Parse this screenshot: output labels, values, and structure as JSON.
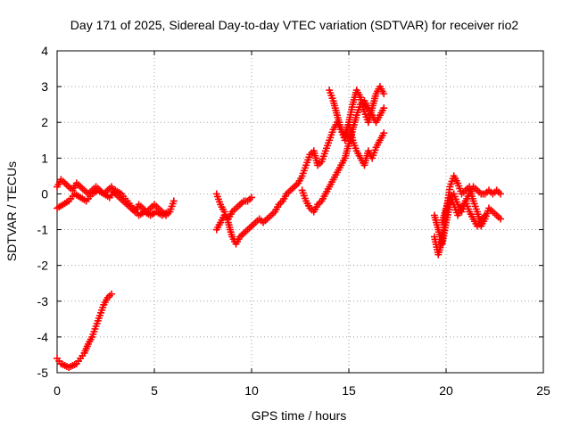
{
  "chart_data": {
    "type": "scatter",
    "title": "Day 171 of 2025, Sidereal Day-to-day VTEC variation (SDTVAR) for receiver rio2",
    "xlabel": "GPS time / hours",
    "ylabel": "SDTVAR / TECUs",
    "xlim": [
      0,
      25
    ],
    "ylim": [
      -5,
      4
    ],
    "xticks": [
      "0",
      "5",
      "10",
      "15",
      "20",
      "25"
    ],
    "yticks": [
      "-5",
      "-4",
      "-3",
      "-2",
      "-1",
      "0",
      "1",
      "2",
      "3",
      "4"
    ],
    "grid": true,
    "marker": "plus",
    "color": "#ff0000",
    "series": [
      {
        "name": "segment-1",
        "x": [
          0.0,
          0.2,
          0.4,
          0.6,
          0.8,
          1.0,
          1.2,
          1.4,
          1.6,
          1.8,
          2.0,
          2.2,
          2.4,
          2.6,
          2.8,
          3.0,
          3.2,
          3.4,
          3.6,
          3.8,
          4.0,
          4.2,
          4.4,
          4.6,
          4.8,
          5.0,
          5.2,
          5.4,
          5.6,
          5.8,
          6.0
        ],
        "y": [
          0.2,
          0.4,
          0.3,
          0.2,
          0.1,
          0.3,
          0.2,
          0.1,
          0.0,
          0.1,
          0.2,
          0.1,
          0.0,
          0.1,
          0.2,
          0.0,
          -0.1,
          -0.2,
          -0.3,
          -0.4,
          -0.5,
          -0.3,
          -0.4,
          -0.5,
          -0.4,
          -0.3,
          -0.4,
          -0.5,
          -0.6,
          -0.5,
          -0.2
        ]
      },
      {
        "name": "segment-2",
        "x": [
          0.0,
          0.3,
          0.6,
          0.9,
          1.2,
          1.5,
          1.8,
          2.1,
          2.4,
          2.7,
          3.0,
          3.3,
          3.6,
          3.9,
          4.2,
          4.5,
          4.8,
          5.1,
          5.4,
          5.7
        ],
        "y": [
          -0.4,
          -0.3,
          -0.2,
          0.0,
          -0.1,
          -0.2,
          0.0,
          0.1,
          0.0,
          -0.1,
          0.1,
          0.0,
          -0.2,
          -0.4,
          -0.6,
          -0.5,
          -0.6,
          -0.5,
          -0.6,
          -0.5
        ]
      },
      {
        "name": "segment-3",
        "x": [
          0.0,
          0.2,
          0.4,
          0.6,
          0.8,
          1.0,
          1.2,
          1.4,
          1.6,
          1.8,
          2.0,
          2.2,
          2.4,
          2.6,
          2.8
        ],
        "y": [
          -4.6,
          -4.75,
          -4.8,
          -4.85,
          -4.8,
          -4.75,
          -4.6,
          -4.45,
          -4.2,
          -4.0,
          -3.7,
          -3.4,
          -3.1,
          -2.9,
          -2.8
        ]
      },
      {
        "name": "segment-4",
        "x": [
          8.2,
          8.4,
          8.6,
          8.8,
          9.0,
          9.2,
          9.4,
          9.6,
          9.8,
          10.0
        ],
        "y": [
          -1.0,
          -0.8,
          -0.6,
          -0.7,
          -0.5,
          -0.4,
          -0.3,
          -0.2,
          -0.2,
          -0.1
        ]
      },
      {
        "name": "segment-5",
        "x": [
          8.2,
          8.4,
          8.6,
          8.8,
          9.0,
          9.2,
          9.4,
          9.6,
          9.8,
          10.0,
          10.2,
          10.4,
          10.6,
          10.8,
          11.0,
          11.2,
          11.4,
          11.6,
          11.8,
          12.0,
          12.2,
          12.4,
          12.6,
          12.8,
          13.0,
          13.2,
          13.4,
          13.6,
          13.8,
          14.0,
          14.2,
          14.4,
          14.6,
          14.8,
          15.0,
          15.2,
          15.4,
          15.6,
          15.8,
          16.0,
          16.2,
          16.4,
          16.6,
          16.8
        ],
        "y": [
          0.0,
          -0.3,
          -0.5,
          -0.8,
          -1.2,
          -1.4,
          -1.2,
          -1.1,
          -1.0,
          -0.9,
          -0.8,
          -0.7,
          -0.8,
          -0.7,
          -0.6,
          -0.5,
          -0.3,
          -0.2,
          0.0,
          0.1,
          0.2,
          0.3,
          0.5,
          0.8,
          1.1,
          1.2,
          0.8,
          0.9,
          1.2,
          1.5,
          1.8,
          2.0,
          1.8,
          1.6,
          2.0,
          1.5,
          1.2,
          1.0,
          0.8,
          1.2,
          1.0,
          1.3,
          1.5,
          1.7
        ]
      },
      {
        "name": "segment-6",
        "x": [
          12.6,
          12.8,
          13.0,
          13.2,
          13.4,
          13.6,
          13.8,
          14.0,
          14.2,
          14.4,
          14.6,
          14.8,
          15.0,
          15.2,
          15.4,
          15.6,
          15.8,
          16.0,
          16.2,
          16.4,
          16.6,
          16.8
        ],
        "y": [
          0.1,
          -0.2,
          -0.4,
          -0.5,
          -0.3,
          -0.2,
          0.0,
          0.2,
          0.4,
          0.6,
          0.8,
          1.0,
          1.4,
          1.8,
          2.2,
          2.5,
          2.6,
          2.4,
          2.2,
          2.0,
          2.2,
          2.4
        ]
      },
      {
        "name": "segment-7",
        "x": [
          14.0,
          14.2,
          14.4,
          14.6,
          14.8,
          15.0,
          15.2,
          15.4,
          15.6,
          15.8,
          16.0,
          16.2,
          16.4,
          16.6,
          16.8
        ],
        "y": [
          2.9,
          2.6,
          2.2,
          1.8,
          1.5,
          2.0,
          2.5,
          2.9,
          2.7,
          2.3,
          2.0,
          2.4,
          2.8,
          3.0,
          2.8
        ]
      },
      {
        "name": "segment-8",
        "x": [
          19.4,
          19.6,
          19.8,
          20.0,
          20.2,
          20.4,
          20.6,
          20.8,
          21.0,
          21.2,
          21.4,
          21.6,
          21.8,
          22.0,
          22.2,
          22.4,
          22.6,
          22.8
        ],
        "y": [
          -1.2,
          -1.7,
          -1.3,
          -0.5,
          0.2,
          0.5,
          0.3,
          0.0,
          0.1,
          0.2,
          -0.2,
          -0.5,
          -0.9,
          -0.7,
          -0.4,
          -0.5,
          -0.6,
          -0.7
        ]
      },
      {
        "name": "segment-9",
        "x": [
          19.4,
          19.6,
          19.8,
          20.0,
          20.2,
          20.4,
          20.6,
          20.8,
          21.0,
          21.2,
          21.4,
          21.6,
          21.8,
          22.0,
          22.2,
          22.4,
          22.6,
          22.8
        ],
        "y": [
          -0.6,
          -1.0,
          -1.4,
          -0.8,
          -0.3,
          0.0,
          -0.3,
          -0.5,
          -0.2,
          0.0,
          0.2,
          0.1,
          0.0,
          0.0,
          0.1,
          0.0,
          0.1,
          0.0
        ]
      },
      {
        "name": "segment-10",
        "x": [
          19.8,
          20.0,
          20.2,
          20.4,
          20.6,
          20.8,
          21.0,
          21.2,
          21.4,
          21.6,
          21.8,
          22.0
        ],
        "y": [
          -0.8,
          -0.4,
          -0.1,
          -0.3,
          -0.6,
          -0.4,
          -0.2,
          -0.5,
          -0.7,
          -0.9,
          -0.8,
          -0.6
        ]
      }
    ]
  }
}
